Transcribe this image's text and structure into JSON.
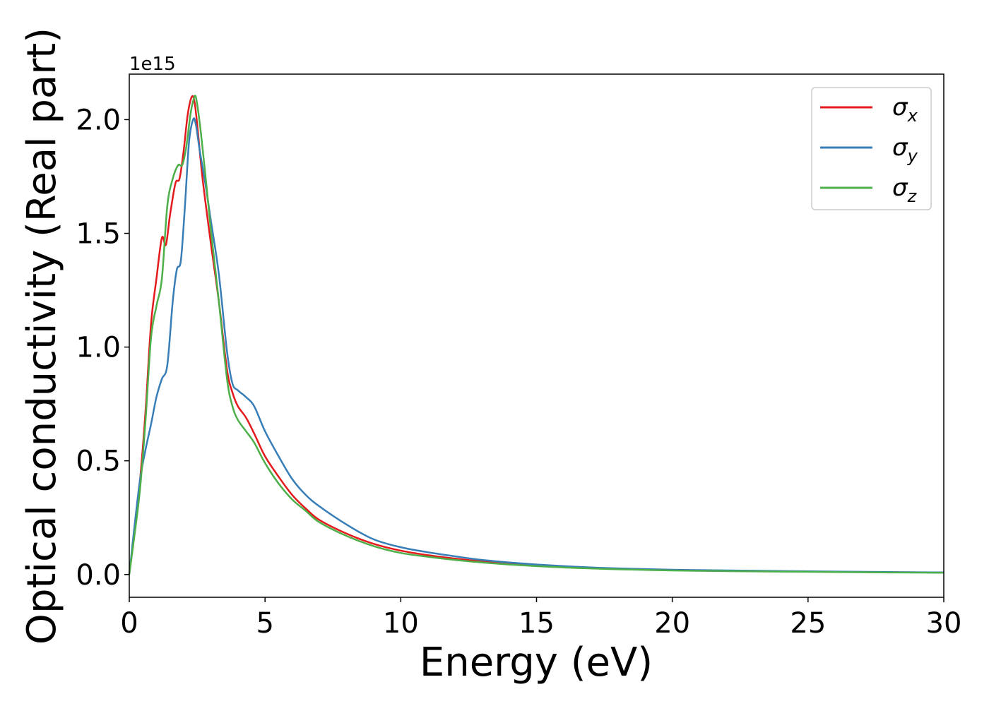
{
  "chart_data": {
    "type": "line",
    "xlabel": "Energy (eV)",
    "ylabel": "Optical conductivity (Real part)",
    "y_offset_text": "1e15",
    "y_scale_factor": 1000000000000000.0,
    "xlim": [
      0,
      30
    ],
    "ylim": [
      -0.1,
      2.2
    ],
    "x_ticks": [
      0,
      5,
      10,
      15,
      20,
      25,
      30
    ],
    "x_tick_labels": [
      "0",
      "5",
      "10",
      "15",
      "20",
      "25",
      "30"
    ],
    "y_ticks": [
      0.0,
      0.5,
      1.0,
      1.5,
      2.0
    ],
    "y_tick_labels": [
      "0.0",
      "0.5",
      "1.0",
      "1.5",
      "2.0"
    ],
    "grid": false,
    "legend_position": "top-right",
    "series": [
      {
        "name": "σ_x",
        "legend_base": "σ",
        "legend_sub": "x",
        "color": "#e41a1c",
        "x": [
          0,
          0.2,
          0.4,
          0.6,
          0.8,
          1.0,
          1.2,
          1.35,
          1.5,
          1.7,
          1.85,
          2.0,
          2.15,
          2.3,
          2.4,
          2.5,
          2.7,
          3.0,
          3.3,
          3.6,
          3.8,
          4.0,
          4.3,
          4.6,
          5.0,
          5.5,
          6.0,
          6.5,
          7.0,
          8.0,
          9.0,
          10.0,
          11.0,
          12.0,
          13.0,
          14.0,
          15.0,
          16.0,
          17.0,
          18.0,
          20.0,
          22.0,
          25.0,
          28.0,
          30.0
        ],
        "values": [
          0.0,
          0.2,
          0.42,
          0.72,
          1.1,
          1.3,
          1.48,
          1.45,
          1.58,
          1.72,
          1.74,
          1.86,
          2.02,
          2.1,
          2.08,
          1.98,
          1.74,
          1.46,
          1.2,
          0.9,
          0.8,
          0.74,
          0.69,
          0.62,
          0.52,
          0.43,
          0.35,
          0.29,
          0.24,
          0.18,
          0.135,
          0.105,
          0.085,
          0.07,
          0.058,
          0.048,
          0.04,
          0.034,
          0.029,
          0.025,
          0.02,
          0.017,
          0.013,
          0.01,
          0.009
        ]
      },
      {
        "name": "σ_y",
        "legend_base": "σ",
        "legend_sub": "y",
        "color": "#377eb8",
        "x": [
          0,
          0.2,
          0.4,
          0.6,
          0.8,
          1.0,
          1.2,
          1.4,
          1.6,
          1.75,
          1.9,
          2.05,
          2.2,
          2.35,
          2.45,
          2.6,
          2.8,
          3.0,
          3.3,
          3.6,
          3.8,
          4.0,
          4.3,
          4.6,
          5.0,
          5.5,
          6.0,
          6.5,
          7.0,
          8.0,
          9.0,
          10.0,
          11.0,
          12.0,
          13.0,
          14.0,
          15.0,
          16.0,
          17.0,
          18.0,
          20.0,
          22.0,
          25.0,
          28.0,
          30.0
        ],
        "values": [
          0.0,
          0.22,
          0.42,
          0.55,
          0.66,
          0.78,
          0.86,
          0.92,
          1.2,
          1.34,
          1.38,
          1.62,
          1.9,
          2.0,
          1.98,
          1.86,
          1.72,
          1.56,
          1.32,
          0.98,
          0.84,
          0.81,
          0.78,
          0.74,
          0.63,
          0.52,
          0.42,
          0.35,
          0.3,
          0.22,
          0.155,
          0.12,
          0.098,
          0.08,
          0.064,
          0.053,
          0.044,
          0.037,
          0.031,
          0.027,
          0.021,
          0.018,
          0.014,
          0.011,
          0.009
        ]
      },
      {
        "name": "σ_z",
        "legend_base": "σ",
        "legend_sub": "z",
        "color": "#4daf4a",
        "x": [
          0,
          0.2,
          0.4,
          0.6,
          0.8,
          1.0,
          1.2,
          1.4,
          1.6,
          1.8,
          1.95,
          2.1,
          2.25,
          2.35,
          2.45,
          2.6,
          2.8,
          3.0,
          3.3,
          3.6,
          3.8,
          4.0,
          4.3,
          4.6,
          5.0,
          5.5,
          6.0,
          6.5,
          7.0,
          8.0,
          9.0,
          10.0,
          11.0,
          12.0,
          13.0,
          14.0,
          15.0,
          16.0,
          17.0,
          18.0,
          20.0,
          22.0,
          25.0,
          28.0,
          30.0
        ],
        "values": [
          0.0,
          0.18,
          0.38,
          0.68,
          1.04,
          1.18,
          1.3,
          1.62,
          1.74,
          1.8,
          1.8,
          1.88,
          2.02,
          2.08,
          2.1,
          1.98,
          1.76,
          1.52,
          1.2,
          0.86,
          0.74,
          0.68,
          0.63,
          0.58,
          0.49,
          0.4,
          0.33,
          0.28,
          0.23,
          0.17,
          0.125,
          0.095,
          0.078,
          0.064,
          0.053,
          0.044,
          0.037,
          0.031,
          0.027,
          0.023,
          0.018,
          0.015,
          0.012,
          0.009,
          0.008
        ]
      }
    ]
  }
}
